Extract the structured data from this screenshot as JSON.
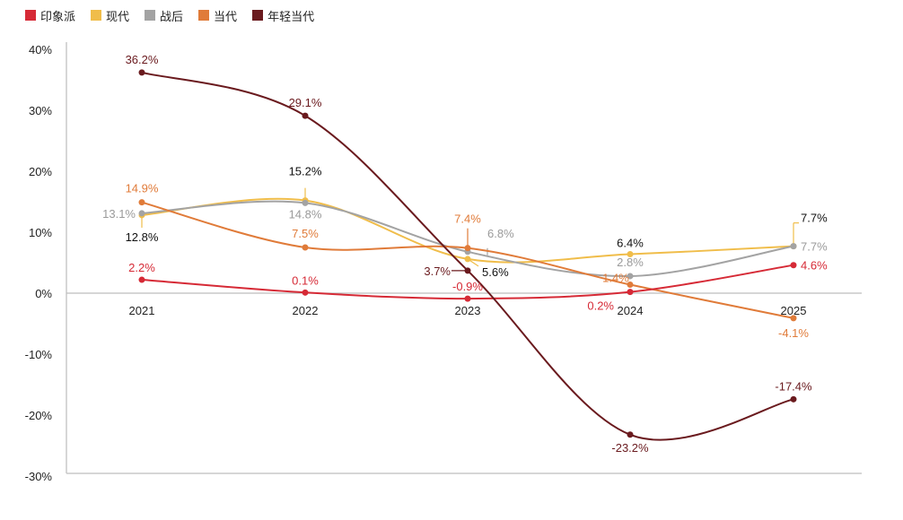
{
  "chart_data": {
    "type": "line",
    "title": "",
    "xlabel": "",
    "ylabel": "",
    "categories": [
      "2021",
      "2022",
      "2023",
      "2024",
      "2025"
    ],
    "ylim": [
      -30,
      40
    ],
    "yticks": [
      40,
      30,
      20,
      10,
      0,
      -10,
      -20,
      -30
    ],
    "ytick_labels": [
      "40%",
      "30%",
      "20%",
      "10%",
      "0%",
      "-10%",
      "-20%",
      "-30%"
    ],
    "grid": false,
    "legend_position": "top-left",
    "series": [
      {
        "name": "印象派",
        "color": "#d62a36",
        "values": [
          2.2,
          0.1,
          -0.9,
          0.2,
          4.6
        ],
        "labels": [
          "2.2%",
          "0.1%",
          "-0.9%",
          "0.2%",
          "4.6%"
        ],
        "label_color": "#d62a36"
      },
      {
        "name": "现代",
        "color": "#f0bd4a",
        "values": [
          12.8,
          15.2,
          5.6,
          6.4,
          7.7
        ],
        "labels": [
          "12.8%",
          "15.2%",
          "5.6%",
          "6.4%",
          "7.7%"
        ],
        "label_color": "#111111"
      },
      {
        "name": "战后",
        "color": "#a3a3a3",
        "values": [
          13.1,
          14.8,
          6.8,
          2.8,
          7.7
        ],
        "labels": [
          "13.1%",
          "14.8%",
          "6.8%",
          "2.8%",
          "7.7%"
        ],
        "label_color": "#9a9a9a"
      },
      {
        "name": "当代",
        "color": "#e07b39",
        "values": [
          14.9,
          7.5,
          7.4,
          1.4,
          -4.1
        ],
        "labels": [
          "14.9%",
          "7.5%",
          "7.4%",
          "1.4%",
          "-4.1%"
        ],
        "label_color": "#e07b39"
      },
      {
        "name": "年轻当代",
        "color": "#6a1a1e",
        "values": [
          36.2,
          29.1,
          3.7,
          -23.2,
          -17.4
        ],
        "labels": [
          "36.2%",
          "29.1%",
          "3.7%",
          "-23.2%",
          "-17.4%"
        ],
        "label_color": "#6a1a1e"
      }
    ]
  }
}
